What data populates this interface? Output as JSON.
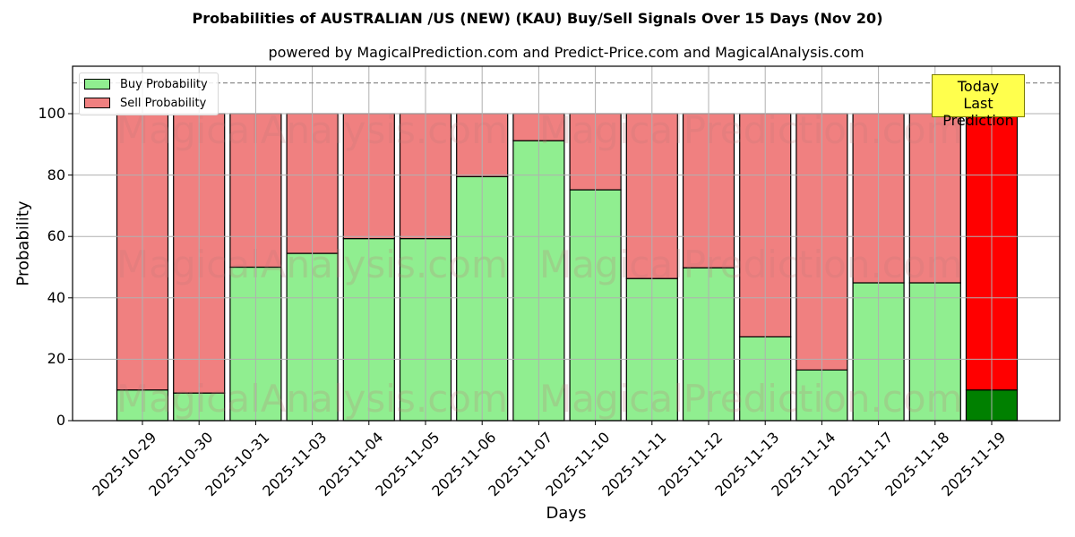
{
  "header": {
    "title": "Probabilities of AUSTRALIAN /US (NEW) (KAU) Buy/Sell Signals Over 15 Days (Nov 20)",
    "subtitle": "powered by MagicalPrediction.com and Predict-Price.com and MagicalAnalysis.com"
  },
  "legend": {
    "buy_label": "Buy Probability",
    "sell_label": "Sell Probability"
  },
  "annotation": {
    "line1": "Today",
    "line2": "Last Prediction"
  },
  "axes": {
    "xlabel": "Days",
    "ylabel": "Probability",
    "yticks": [
      "0",
      "20",
      "40",
      "60",
      "80",
      "100"
    ]
  },
  "watermarks": [
    "MagicalAnalysis.com",
    "MagicalPrediction.com"
  ],
  "colors": {
    "buy": "#90ee90",
    "sell": "#f08080",
    "today_buy": "#008000",
    "today_sell": "#ff0000",
    "annotation_bg": "#ffff4d"
  },
  "chart_data": {
    "type": "bar",
    "stacked": true,
    "title": "Probabilities of AUSTRALIAN /US (NEW) (KAU) Buy/Sell Signals Over 15 Days (Nov 20)",
    "subtitle": "powered by MagicalPrediction.com and Predict-Price.com and MagicalAnalysis.com",
    "xlabel": "Days",
    "ylabel": "Probability",
    "ylim": [
      0,
      115
    ],
    "yticks": [
      0,
      20,
      40,
      60,
      80,
      100
    ],
    "grid": true,
    "legend_position": "upper left",
    "reference_line": {
      "y": 110,
      "style": "dashed",
      "color": "#808080"
    },
    "categories": [
      "2025-10-29",
      "2025-10-30",
      "2025-10-31",
      "2025-11-03",
      "2025-11-04",
      "2025-11-05",
      "2025-11-06",
      "2025-11-07",
      "2025-11-10",
      "2025-11-11",
      "2025-11-12",
      "2025-11-13",
      "2025-11-14",
      "2025-11-17",
      "2025-11-18",
      "2025-11-19"
    ],
    "series": [
      {
        "name": "Buy Probability",
        "values": [
          10,
          9,
          50,
          54.5,
          59.3,
          59.3,
          79.5,
          91.2,
          75.2,
          46.3,
          49.8,
          27.3,
          16.5,
          44.9,
          44.9,
          10
        ]
      },
      {
        "name": "Sell Probability",
        "values": [
          90,
          91,
          50,
          45.5,
          40.7,
          40.7,
          20.5,
          8.8,
          24.8,
          53.7,
          50.2,
          72.7,
          83.5,
          55.1,
          55.1,
          90
        ]
      }
    ],
    "annotations": [
      {
        "text": "Today\nLast Prediction",
        "category": "2025-11-19"
      }
    ]
  }
}
